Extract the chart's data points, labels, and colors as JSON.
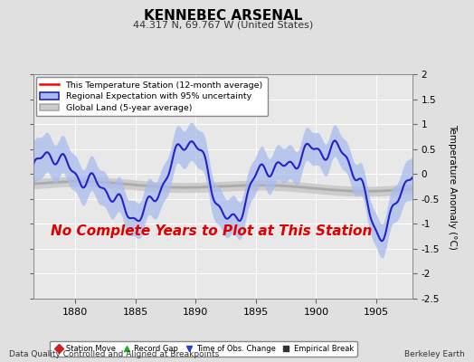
{
  "title": "KENNEBEC ARSENAL",
  "subtitle": "44.317 N, 69.767 W (United States)",
  "xlabel_left": "Data Quality Controlled and Aligned at Breakpoints",
  "xlabel_right": "Berkeley Earth",
  "ylabel": "Temperature Anomaly (°C)",
  "ylim": [
    -2.5,
    2.0
  ],
  "yticks": [
    -2.5,
    -2,
    -1.5,
    -1,
    -0.5,
    0,
    0.5,
    1,
    1.5,
    2
  ],
  "xlim": [
    1876.5,
    1908.0
  ],
  "xticks": [
    1880,
    1885,
    1890,
    1895,
    1900,
    1905
  ],
  "no_data_text": "No Complete Years to Plot at This Station",
  "no_data_color": "#dd0000",
  "no_data_fontsize": 11,
  "legend_items": [
    {
      "label": "This Temperature Station (12-month average)",
      "color": "#ff0000",
      "lw": 1.5
    },
    {
      "label": "Regional Expectation with 95% uncertainty",
      "line_color": "#2222cc",
      "fill_color": "#aabbee",
      "lw": 1.5
    },
    {
      "label": "Global Land (5-year average)",
      "line_color": "#aaaaaa",
      "fill_color": "#cccccc",
      "lw": 2.5
    }
  ],
  "marker_legend": [
    {
      "label": "Station Move",
      "marker": "D",
      "color": "#cc2222"
    },
    {
      "label": "Record Gap",
      "marker": "^",
      "color": "#22aa22"
    },
    {
      "label": "Time of Obs. Change",
      "marker": "v",
      "color": "#2244cc"
    },
    {
      "label": "Empirical Break",
      "marker": "s",
      "color": "#333333"
    }
  ],
  "bg_color": "#e0e0e0",
  "plot_bg_color": "#e8e8e8",
  "grid_color": "#ffffff",
  "seed": 42
}
